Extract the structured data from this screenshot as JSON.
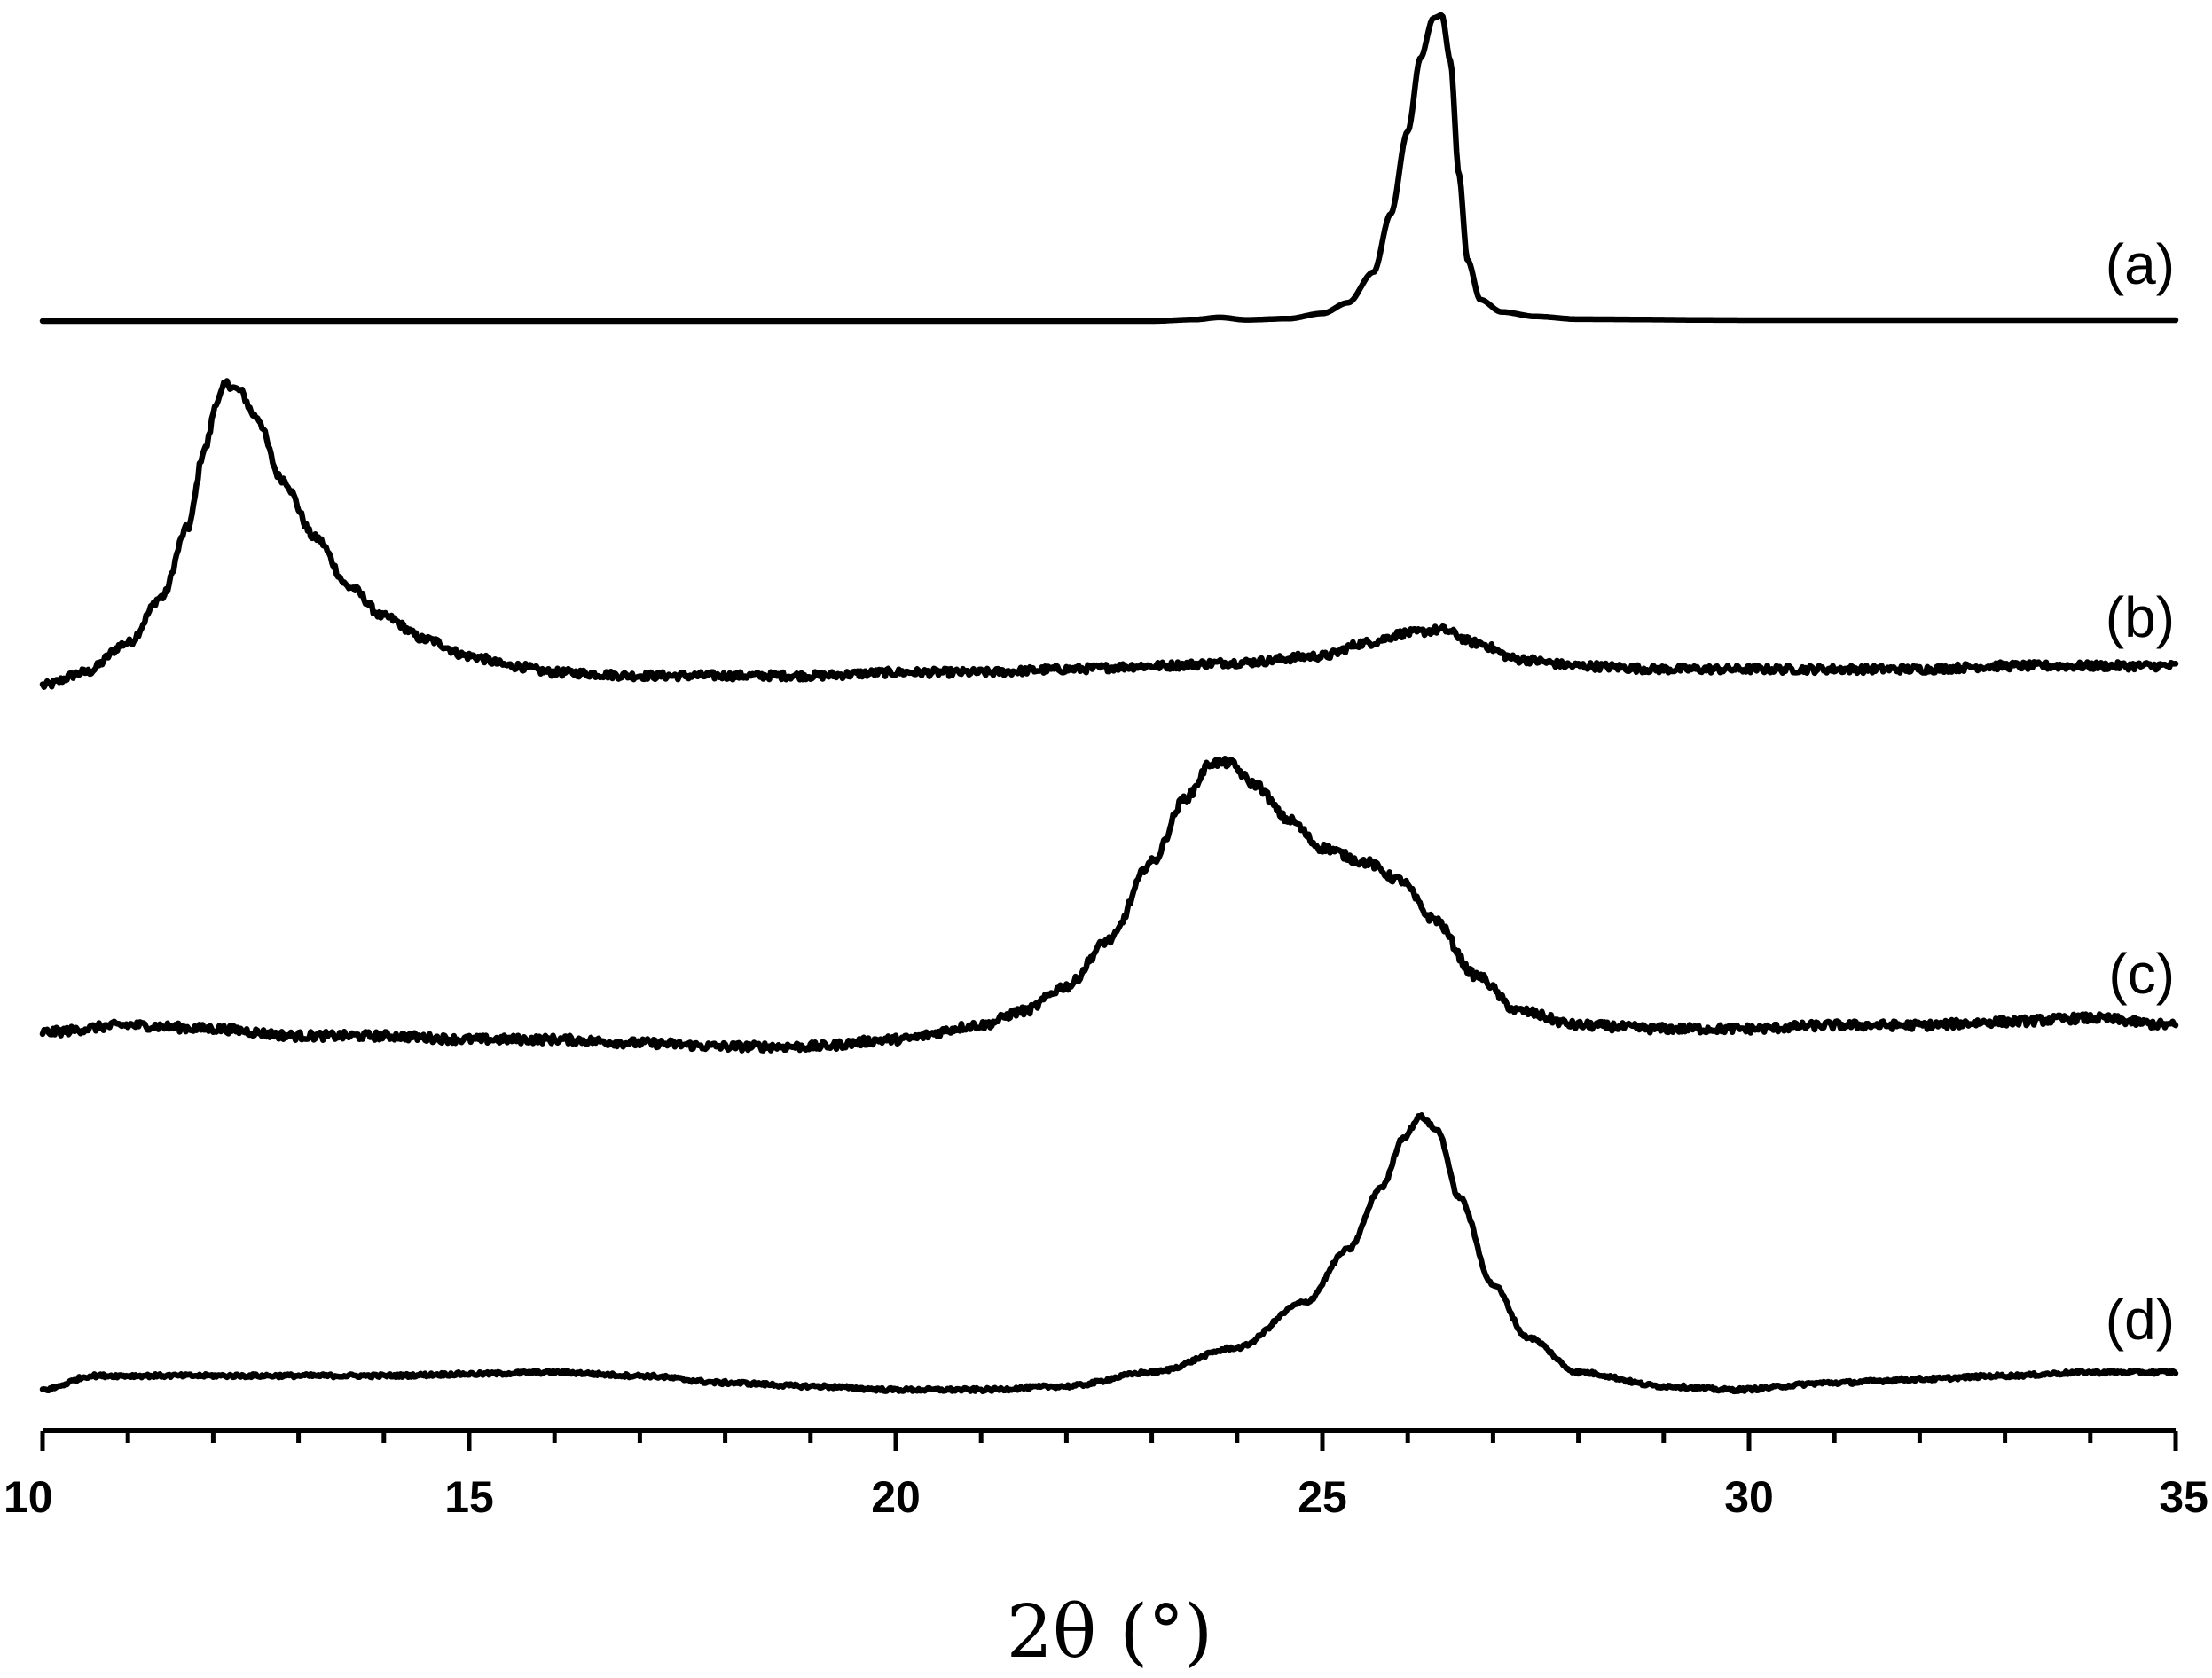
{
  "chart_data": {
    "type": "line",
    "xlabel": "2θ (°)",
    "xlim": [
      10,
      35
    ],
    "x_ticks": [
      10,
      15,
      20,
      25,
      30,
      35
    ],
    "x_minor_step": 1,
    "y_axis_visible": false,
    "grid": false,
    "legend": "none",
    "series": [
      {
        "label": "(a)",
        "noise": 0.0,
        "points": [
          [
            10,
            0
          ],
          [
            23,
            0
          ],
          [
            23.5,
            0.005
          ],
          [
            23.8,
            0.012
          ],
          [
            24.1,
            0.004
          ],
          [
            24.6,
            0.008
          ],
          [
            25,
            0.025
          ],
          [
            25.3,
            0.06
          ],
          [
            25.6,
            0.16
          ],
          [
            25.8,
            0.35
          ],
          [
            26.0,
            0.62
          ],
          [
            26.15,
            0.86
          ],
          [
            26.3,
            0.99
          ],
          [
            26.4,
            1.0
          ],
          [
            26.5,
            0.85
          ],
          [
            26.6,
            0.48
          ],
          [
            26.7,
            0.2
          ],
          [
            26.85,
            0.07
          ],
          [
            27.1,
            0.03
          ],
          [
            27.5,
            0.015
          ],
          [
            28,
            0.006
          ],
          [
            30,
            0.003
          ],
          [
            35,
            0.003
          ]
        ]
      },
      {
        "label": "(b)",
        "noise": 0.012,
        "points": [
          [
            10,
            0.0
          ],
          [
            10.5,
            0.04
          ],
          [
            11,
            0.13
          ],
          [
            11.4,
            0.27
          ],
          [
            11.7,
            0.48
          ],
          [
            11.9,
            0.72
          ],
          [
            12.05,
            0.87
          ],
          [
            12.15,
            0.92
          ],
          [
            12.3,
            0.9
          ],
          [
            12.5,
            0.82
          ],
          [
            12.8,
            0.63
          ],
          [
            13.2,
            0.45
          ],
          [
            13.6,
            0.3
          ],
          [
            14,
            0.21
          ],
          [
            14.5,
            0.14
          ],
          [
            15,
            0.09
          ],
          [
            15.5,
            0.06
          ],
          [
            16,
            0.04
          ],
          [
            17,
            0.03
          ],
          [
            18,
            0.03
          ],
          [
            19,
            0.03
          ],
          [
            20,
            0.04
          ],
          [
            21,
            0.04
          ],
          [
            22,
            0.05
          ],
          [
            23,
            0.06
          ],
          [
            24,
            0.07
          ],
          [
            25,
            0.09
          ],
          [
            25.5,
            0.13
          ],
          [
            26,
            0.16
          ],
          [
            26.4,
            0.17
          ],
          [
            26.8,
            0.13
          ],
          [
            27.3,
            0.08
          ],
          [
            28,
            0.06
          ],
          [
            29,
            0.05
          ],
          [
            30,
            0.05
          ],
          [
            31,
            0.05
          ],
          [
            32,
            0.05
          ],
          [
            33,
            0.06
          ],
          [
            34,
            0.06
          ],
          [
            35,
            0.06
          ]
        ]
      },
      {
        "label": "(c)",
        "noise": 0.012,
        "points": [
          [
            10,
            0.04
          ],
          [
            11,
            0.06
          ],
          [
            12,
            0.05
          ],
          [
            13,
            0.03
          ],
          [
            14,
            0.03
          ],
          [
            15,
            0.02
          ],
          [
            16,
            0.02
          ],
          [
            17,
            0.01
          ],
          [
            18,
            0.0
          ],
          [
            19,
            0.0
          ],
          [
            20,
            0.02
          ],
          [
            21,
            0.06
          ],
          [
            21.5,
            0.1
          ],
          [
            22,
            0.17
          ],
          [
            22.5,
            0.3
          ],
          [
            23,
            0.52
          ],
          [
            23.4,
            0.7
          ],
          [
            23.7,
            0.8
          ],
          [
            23.9,
            0.8
          ],
          [
            24.2,
            0.74
          ],
          [
            24.6,
            0.64
          ],
          [
            25,
            0.56
          ],
          [
            25.5,
            0.52
          ],
          [
            25.9,
            0.47
          ],
          [
            26.3,
            0.36
          ],
          [
            26.8,
            0.2
          ],
          [
            27.3,
            0.1
          ],
          [
            28,
            0.06
          ],
          [
            29,
            0.05
          ],
          [
            30,
            0.05
          ],
          [
            31,
            0.06
          ],
          [
            32,
            0.06
          ],
          [
            33,
            0.07
          ],
          [
            34,
            0.08
          ],
          [
            35,
            0.06
          ]
        ]
      },
      {
        "label": "(d)",
        "noise": 0.005,
        "points": [
          [
            10,
            0.0
          ],
          [
            10.6,
            0.04
          ],
          [
            11,
            0.04
          ],
          [
            12,
            0.04
          ],
          [
            13,
            0.04
          ],
          [
            14,
            0.04
          ],
          [
            15,
            0.045
          ],
          [
            16,
            0.05
          ],
          [
            17,
            0.04
          ],
          [
            18,
            0.02
          ],
          [
            19,
            0.01
          ],
          [
            20,
            0.0
          ],
          [
            21,
            0.0
          ],
          [
            22,
            0.01
          ],
          [
            23,
            0.05
          ],
          [
            24,
            0.12
          ],
          [
            24.8,
            0.25
          ],
          [
            25.3,
            0.4
          ],
          [
            25.7,
            0.58
          ],
          [
            25.95,
            0.72
          ],
          [
            26.15,
            0.78
          ],
          [
            26.35,
            0.74
          ],
          [
            26.6,
            0.55
          ],
          [
            27,
            0.3
          ],
          [
            27.4,
            0.15
          ],
          [
            28,
            0.05
          ],
          [
            29,
            0.01
          ],
          [
            29.8,
            0.0
          ],
          [
            31,
            0.02
          ],
          [
            32,
            0.03
          ],
          [
            33,
            0.04
          ],
          [
            34,
            0.05
          ],
          [
            35,
            0.05
          ]
        ]
      }
    ]
  }
}
